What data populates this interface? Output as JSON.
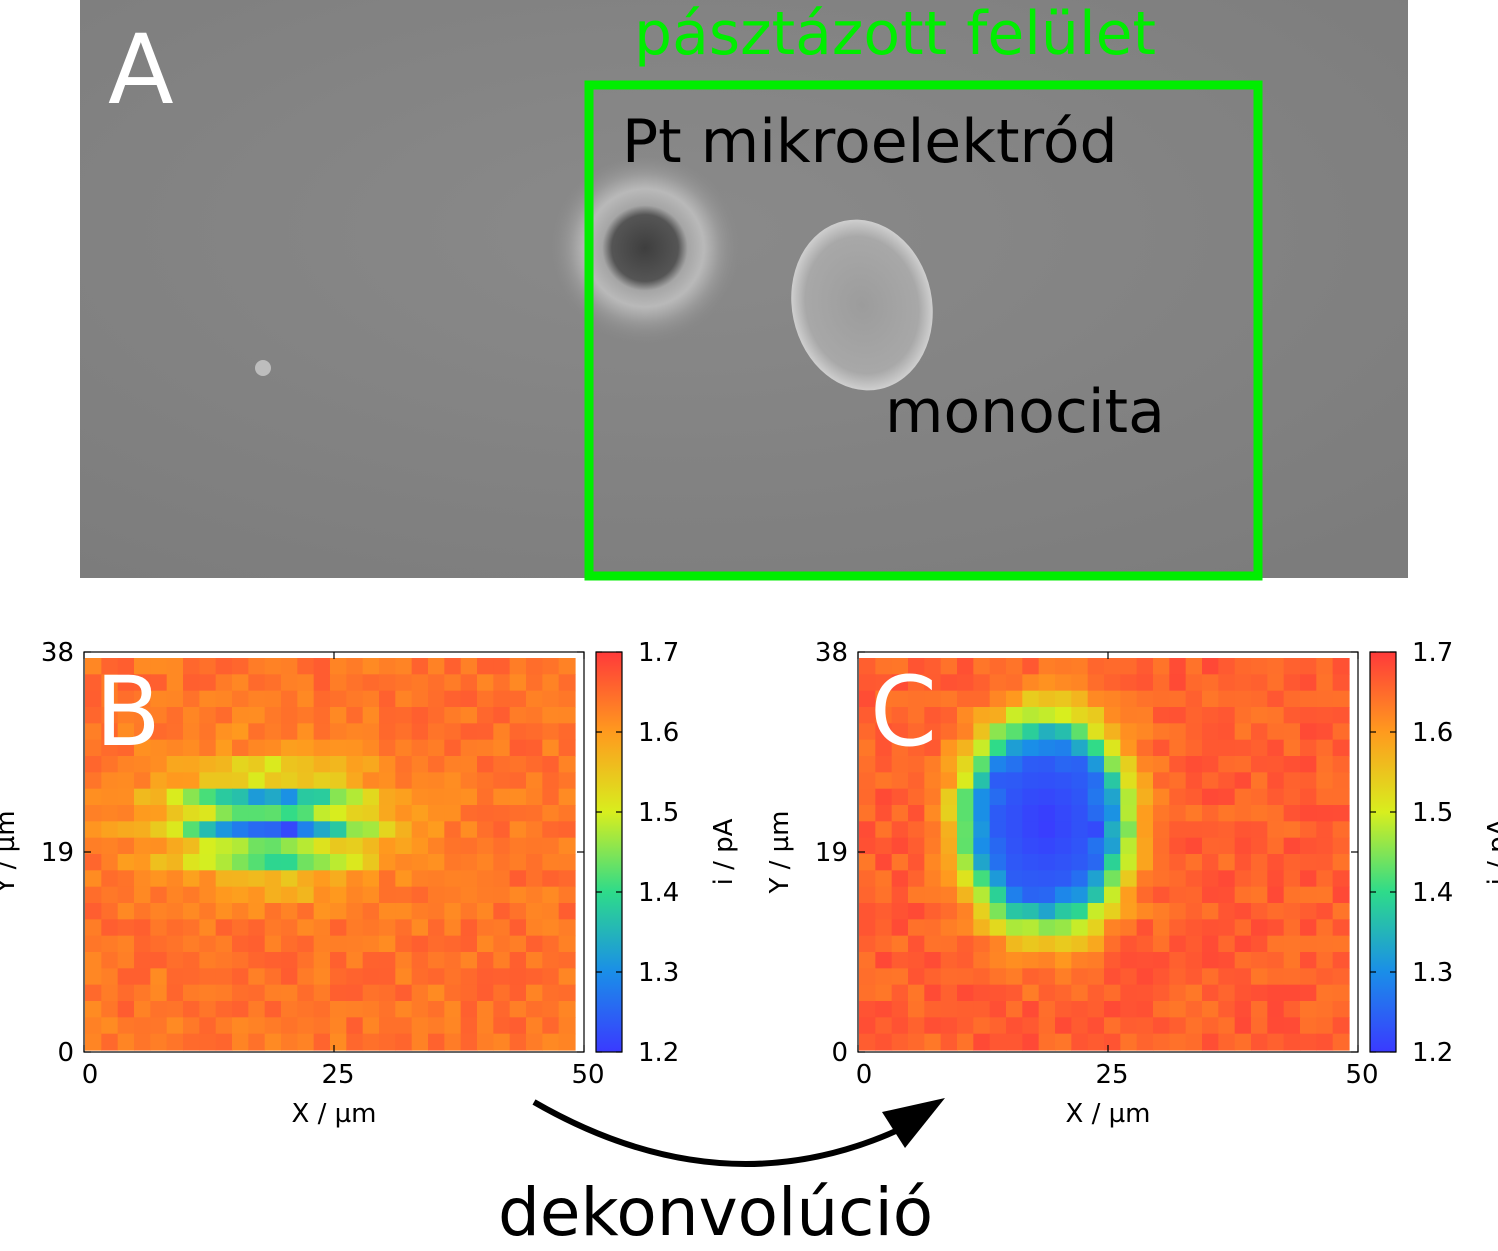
{
  "panel_a": {
    "label": "A",
    "scan_area_label": "pásztázott felület",
    "electrode_label": "Pt mikroelektród",
    "cell_label": "monocita",
    "scan_box_color": "#00ee00",
    "image": "grayscale micrograph"
  },
  "arrow_label": "dekonvolúció",
  "chart_data": [
    {
      "type": "heatmap",
      "panel_label": "B",
      "xlabel": "X / µm",
      "ylabel": "Y / µm",
      "xlim": [
        0,
        50
      ],
      "ylim": [
        0,
        38
      ],
      "x_ticks": [
        "0",
        "25",
        "50"
      ],
      "y_ticks": [
        "0",
        "19",
        "38"
      ],
      "colorbar": {
        "label": "i / pA",
        "range": [
          1.2,
          1.7
        ],
        "ticks": [
          "1.2",
          "1.3",
          "1.4",
          "1.5",
          "1.6",
          "1.7"
        ],
        "colormap": "jet"
      },
      "grid_size": [
        30,
        24
      ],
      "background_value": 1.64,
      "features": [
        {
          "description": "elongated low-current region with striped artefacts",
          "center": [
            19,
            22
          ],
          "min_value": 1.28
        }
      ]
    },
    {
      "type": "heatmap",
      "panel_label": "C",
      "xlabel": "X / µm",
      "ylabel": "Y / µm",
      "xlim": [
        0,
        50
      ],
      "ylim": [
        0,
        38
      ],
      "x_ticks": [
        "0",
        "25",
        "50"
      ],
      "y_ticks": [
        "0",
        "19",
        "38"
      ],
      "colorbar": {
        "label": "i / pA",
        "range": [
          1.2,
          1.7
        ],
        "ticks": [
          "1.2",
          "1.3",
          "1.4",
          "1.5",
          "1.6",
          "1.7"
        ],
        "colormap": "jet"
      },
      "grid_size": [
        30,
        24
      ],
      "background_value": 1.66,
      "features": [
        {
          "description": "compact low-current spot",
          "center": [
            19,
            22
          ],
          "min_value": 1.2
        }
      ]
    }
  ]
}
